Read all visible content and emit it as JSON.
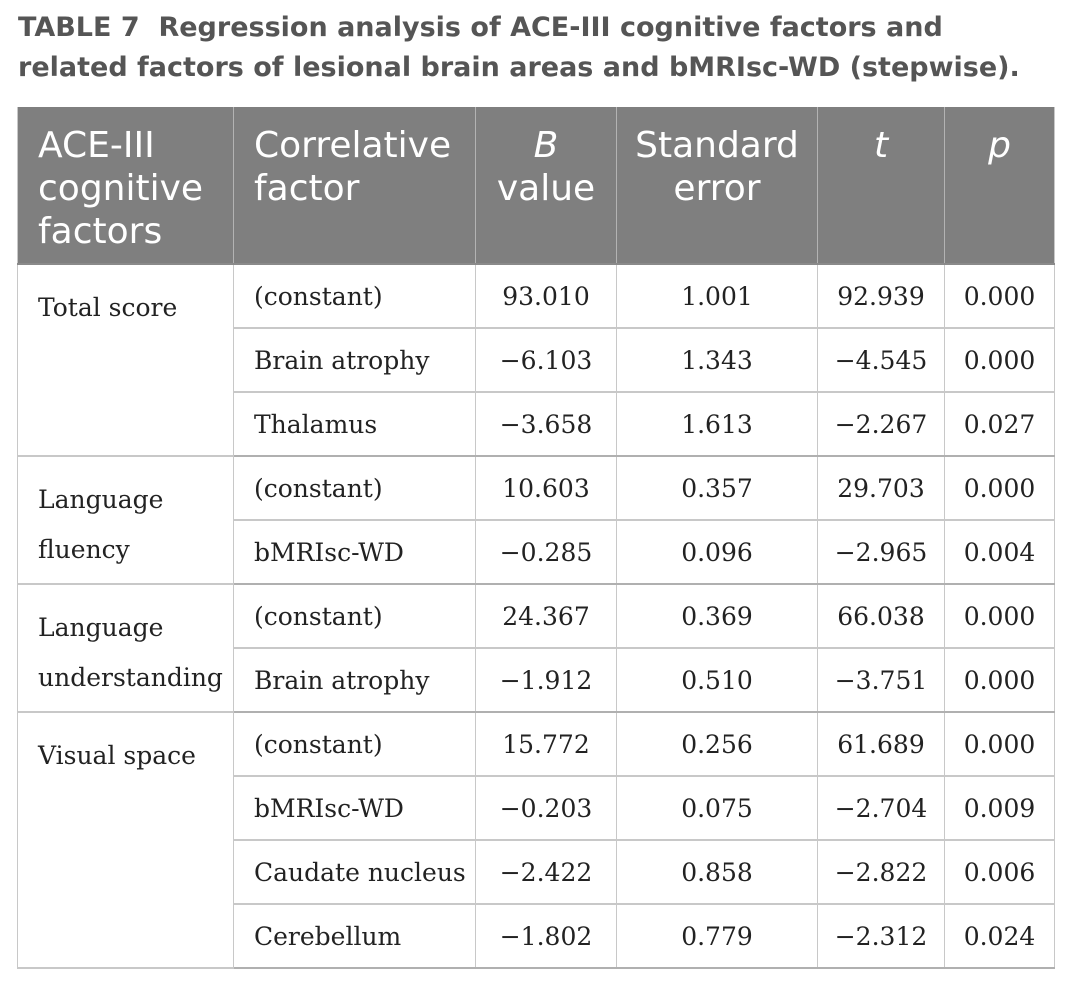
{
  "caption": {
    "label": "TABLE 7",
    "text": "Regression analysis of ACE-III cognitive factors and related factors of lesional brain areas and bMRIsc-WD (stepwise)."
  },
  "header": {
    "col1": [
      "ACE-III",
      "cognitive",
      "factors"
    ],
    "col2": [
      "Correlative",
      "factor"
    ],
    "col3_italic": "B",
    "col3_rest": "value",
    "col4": [
      "Standard",
      "error"
    ],
    "col5": "t",
    "col6": "p"
  },
  "groups": [
    {
      "name": "Total score",
      "rows": [
        {
          "factor": "(constant)",
          "b": "93.010",
          "se": "1.001",
          "t": "92.939",
          "p": "0.000"
        },
        {
          "factor": "Brain atrophy",
          "b": "−6.103",
          "se": "1.343",
          "t": "−4.545",
          "p": "0.000"
        },
        {
          "factor": "Thalamus",
          "b": "−3.658",
          "se": "1.613",
          "t": "−2.267",
          "p": "0.027"
        }
      ]
    },
    {
      "name": "Language fluency",
      "rows": [
        {
          "factor": "(constant)",
          "b": "10.603",
          "se": "0.357",
          "t": "29.703",
          "p": "0.000"
        },
        {
          "factor": "bMRIsc-WD",
          "b": "−0.285",
          "se": "0.096",
          "t": "−2.965",
          "p": "0.004"
        }
      ]
    },
    {
      "name": "Language understanding",
      "rows": [
        {
          "factor": "(constant)",
          "b": "24.367",
          "se": "0.369",
          "t": "66.038",
          "p": "0.000"
        },
        {
          "factor": "Brain atrophy",
          "b": "−1.912",
          "se": "0.510",
          "t": "−3.751",
          "p": "0.000"
        }
      ]
    },
    {
      "name": "Visual space",
      "rows": [
        {
          "factor": "(constant)",
          "b": "15.772",
          "se": "0.256",
          "t": "61.689",
          "p": "0.000"
        },
        {
          "factor": "bMRIsc-WD",
          "b": "−0.203",
          "se": "0.075",
          "t": "−2.704",
          "p": "0.009"
        },
        {
          "factor": "Caudate nucleus",
          "b": "−2.422",
          "se": "0.858",
          "t": "−2.822",
          "p": "0.006"
        },
        {
          "factor": "Cerebellum",
          "b": "−1.802",
          "se": "0.779",
          "t": "−2.312",
          "p": "0.024"
        }
      ]
    }
  ]
}
